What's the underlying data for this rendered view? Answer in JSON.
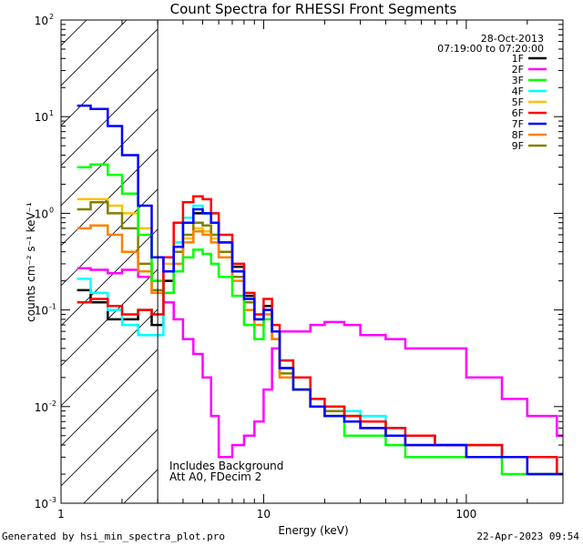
{
  "chart_data": {
    "type": "line",
    "title": "Count Spectra for RHESSI Front Segments",
    "xlabel": "Energy (keV)",
    "ylabel": "counts cm⁻² s⁻¹ keV⁻¹",
    "xscale": "log",
    "yscale": "log",
    "xlim": [
      1,
      300
    ],
    "ylim": [
      0.001,
      100
    ],
    "x_ticks": [
      {
        "value": 1,
        "label": "1"
      },
      {
        "value": 10,
        "label": "10"
      },
      {
        "value": 100,
        "label": "100"
      }
    ],
    "y_ticks": [
      {
        "value": 0.001,
        "base": "10",
        "exp": "-3"
      },
      {
        "value": 0.01,
        "base": "10",
        "exp": "-2"
      },
      {
        "value": 0.1,
        "base": "10",
        "exp": "-1"
      },
      {
        "value": 1,
        "base": "10",
        "exp": "0"
      },
      {
        "value": 10,
        "base": "10",
        "exp": "1"
      },
      {
        "value": 100,
        "base": "10",
        "exp": "2"
      }
    ],
    "excluded_region": {
      "from": 1,
      "to": 3,
      "style": "hatched"
    },
    "legend_position": "top-right",
    "info": {
      "date": "28-Oct-2013",
      "time_range": "07:19:00 to 07:20:00"
    },
    "annotations": [
      "Includes Background",
      "Att A0, FDecim 2"
    ],
    "series": [
      {
        "name": "1F",
        "color": "#000000",
        "x": [
          1.2,
          1.4,
          1.7,
          2.0,
          2.4,
          2.8,
          3.2,
          3.6,
          4.0,
          4.5,
          5.0,
          5.5,
          6.0,
          7.0,
          8.0,
          9.0,
          10.0,
          11.0,
          12.0,
          14.0,
          17.0,
          20.0,
          25.0,
          30.0,
          40.0,
          50.0,
          70.0,
          100.0,
          150.0,
          200.0,
          280.0
        ],
        "y": [
          0.16,
          0.12,
          0.08,
          0.08,
          0.1,
          0.07,
          0.2,
          0.4,
          0.8,
          1.0,
          1.0,
          0.8,
          0.5,
          0.28,
          0.14,
          0.08,
          0.11,
          0.06,
          0.025,
          0.015,
          0.01,
          0.01,
          0.008,
          0.007,
          0.005,
          0.005,
          0.004,
          0.004,
          0.003,
          0.003,
          0.002
        ]
      },
      {
        "name": "2F",
        "color": "#ff00ff",
        "x": [
          1.2,
          1.4,
          1.7,
          2.0,
          2.4,
          2.8,
          3.2,
          3.6,
          4.0,
          4.5,
          5.0,
          5.5,
          6.0,
          7.0,
          8.0,
          9.0,
          10.0,
          11.0,
          12.0,
          14.0,
          17.0,
          20.0,
          25.0,
          30.0,
          40.0,
          50.0,
          70.0,
          100.0,
          150.0,
          200.0,
          280.0
        ],
        "y": [
          0.27,
          0.26,
          0.24,
          0.26,
          0.22,
          0.2,
          0.12,
          0.08,
          0.05,
          0.035,
          0.02,
          0.008,
          0.003,
          0.004,
          0.005,
          0.007,
          0.015,
          0.04,
          0.06,
          0.06,
          0.07,
          0.075,
          0.07,
          0.055,
          0.05,
          0.04,
          0.04,
          0.02,
          0.012,
          0.008,
          0.005
        ]
      },
      {
        "name": "3F",
        "color": "#00ff00",
        "x": [
          1.2,
          1.4,
          1.7,
          2.0,
          2.4,
          2.8,
          3.2,
          3.6,
          4.0,
          4.5,
          5.0,
          5.5,
          6.0,
          7.0,
          8.0,
          9.0,
          10.0,
          11.0,
          12.0,
          14.0,
          17.0,
          20.0,
          25.0,
          30.0,
          40.0,
          50.0,
          70.0,
          100.0,
          150.0,
          200.0,
          280.0
        ],
        "y": [
          3.0,
          3.2,
          2.5,
          1.6,
          0.6,
          0.2,
          0.15,
          0.25,
          0.35,
          0.42,
          0.38,
          0.3,
          0.22,
          0.14,
          0.07,
          0.05,
          0.08,
          0.06,
          0.03,
          0.015,
          0.01,
          0.008,
          0.005,
          0.005,
          0.004,
          0.003,
          0.003,
          0.003,
          0.002,
          0.002,
          0.002
        ]
      },
      {
        "name": "4F",
        "color": "#00ffff",
        "x": [
          1.2,
          1.4,
          1.7,
          2.0,
          2.4,
          2.8,
          3.2,
          3.6,
          4.0,
          4.5,
          5.0,
          5.5,
          6.0,
          7.0,
          8.0,
          9.0,
          10.0,
          11.0,
          12.0,
          14.0,
          17.0,
          20.0,
          25.0,
          30.0,
          40.0,
          50.0,
          70.0,
          100.0,
          150.0,
          200.0,
          280.0
        ],
        "y": [
          0.21,
          0.15,
          0.1,
          0.07,
          0.055,
          0.055,
          0.25,
          0.5,
          0.9,
          1.2,
          1.0,
          0.8,
          0.5,
          0.25,
          0.12,
          0.07,
          0.1,
          0.06,
          0.025,
          0.015,
          0.012,
          0.01,
          0.009,
          0.008,
          0.006,
          0.005,
          0.004,
          0.004,
          0.003,
          0.003,
          0.002
        ]
      },
      {
        "name": "5F",
        "color": "#ffbf00",
        "x": [
          1.2,
          1.4,
          1.7,
          2.0,
          2.4,
          2.8,
          3.2,
          3.6,
          4.0,
          4.5,
          5.0,
          5.5,
          6.0,
          7.0,
          8.0,
          9.0,
          10.0,
          11.0,
          12.0,
          14.0,
          17.0,
          20.0,
          25.0,
          30.0,
          40.0,
          50.0,
          70.0,
          100.0,
          150.0,
          200.0,
          280.0
        ],
        "y": [
          1.4,
          1.4,
          1.2,
          1.0,
          0.7,
          0.35,
          0.3,
          0.4,
          0.55,
          0.7,
          0.65,
          0.55,
          0.4,
          0.22,
          0.12,
          0.08,
          0.1,
          0.06,
          0.025,
          0.015,
          0.01,
          0.009,
          0.008,
          0.007,
          0.005,
          0.004,
          0.004,
          0.003,
          0.003,
          0.002,
          0.002
        ]
      },
      {
        "name": "6F",
        "color": "#ff0000",
        "x": [
          1.2,
          1.4,
          1.7,
          2.0,
          2.4,
          2.8,
          3.2,
          3.6,
          4.0,
          4.5,
          5.0,
          5.5,
          6.0,
          7.0,
          8.0,
          9.0,
          10.0,
          11.0,
          12.0,
          14.0,
          17.0,
          20.0,
          25.0,
          30.0,
          40.0,
          50.0,
          70.0,
          100.0,
          150.0,
          200.0,
          280.0
        ],
        "y": [
          0.12,
          0.13,
          0.11,
          0.09,
          0.1,
          0.09,
          0.35,
          0.8,
          1.3,
          1.5,
          1.4,
          1.0,
          0.6,
          0.3,
          0.15,
          0.09,
          0.13,
          0.07,
          0.03,
          0.02,
          0.012,
          0.01,
          0.008,
          0.007,
          0.006,
          0.005,
          0.004,
          0.004,
          0.003,
          0.003,
          0.002
        ]
      },
      {
        "name": "7F",
        "color": "#0000ff",
        "x": [
          1.2,
          1.4,
          1.7,
          2.0,
          2.4,
          2.8,
          3.2,
          3.6,
          4.0,
          4.5,
          5.0,
          5.5,
          6.0,
          7.0,
          8.0,
          9.0,
          10.0,
          11.0,
          12.0,
          14.0,
          17.0,
          20.0,
          25.0,
          30.0,
          40.0,
          50.0,
          70.0,
          100.0,
          150.0,
          200.0,
          280.0
        ],
        "y": [
          13.0,
          12.0,
          8.0,
          4.0,
          1.2,
          0.35,
          0.25,
          0.45,
          0.8,
          1.1,
          1.0,
          0.8,
          0.5,
          0.25,
          0.13,
          0.08,
          0.1,
          0.06,
          0.025,
          0.015,
          0.01,
          0.008,
          0.007,
          0.006,
          0.005,
          0.004,
          0.004,
          0.003,
          0.003,
          0.002,
          0.002
        ]
      },
      {
        "name": "8F",
        "color": "#ff8000",
        "x": [
          1.2,
          1.4,
          1.7,
          2.0,
          2.4,
          2.8,
          3.2,
          3.6,
          4.0,
          4.5,
          5.0,
          5.5,
          6.0,
          7.0,
          8.0,
          9.0,
          10.0,
          11.0,
          12.0,
          14.0,
          17.0,
          20.0,
          25.0,
          30.0,
          40.0,
          50.0,
          70.0,
          100.0,
          150.0,
          200.0,
          280.0
        ],
        "y": [
          0.7,
          0.75,
          0.6,
          0.4,
          0.25,
          0.15,
          0.15,
          0.3,
          0.5,
          0.65,
          0.6,
          0.5,
          0.35,
          0.2,
          0.1,
          0.07,
          0.09,
          0.05,
          0.02,
          0.015,
          0.01,
          0.008,
          0.007,
          0.006,
          0.005,
          0.004,
          0.004,
          0.003,
          0.003,
          0.002,
          0.002
        ]
      },
      {
        "name": "9F",
        "color": "#808000",
        "x": [
          1.2,
          1.4,
          1.7,
          2.0,
          2.4,
          2.8,
          3.2,
          3.6,
          4.0,
          4.5,
          5.0,
          5.5,
          6.0,
          7.0,
          8.0,
          9.0,
          10.0,
          11.0,
          12.0,
          14.0,
          17.0,
          20.0,
          25.0,
          30.0,
          40.0,
          50.0,
          70.0,
          100.0,
          150.0,
          200.0,
          280.0
        ],
        "y": [
          1.1,
          1.3,
          1.0,
          0.7,
          0.3,
          0.16,
          0.25,
          0.4,
          0.6,
          0.8,
          0.75,
          0.6,
          0.4,
          0.22,
          0.12,
          0.08,
          0.1,
          0.05,
          0.022,
          0.015,
          0.01,
          0.009,
          0.007,
          0.006,
          0.005,
          0.004,
          0.004,
          0.003,
          0.003,
          0.002,
          0.002
        ]
      }
    ]
  },
  "footer": {
    "generated_by": "Generated by hsi_min_spectra_plot.pro",
    "timestamp": "22-Apr-2023 09:54"
  }
}
